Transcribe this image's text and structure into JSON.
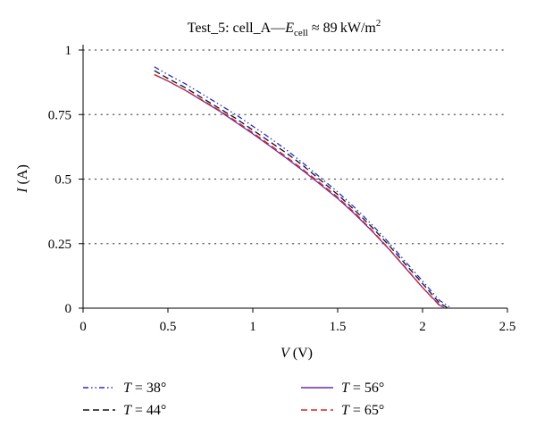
{
  "chart_data": {
    "type": "line",
    "title_parts": {
      "prefix": "Test_5: cell_A—",
      "E": "E",
      "sub": "cell",
      "suffix": " ≈ 89 kW/m",
      "sup": "2"
    },
    "xlabel": {
      "var": "V",
      "unit": " (V)"
    },
    "ylabel": {
      "var": "I",
      "unit": " (A)"
    },
    "xlim": [
      0,
      2.5
    ],
    "ylim": [
      0,
      1
    ],
    "x_ticks": [
      0,
      0.5,
      1,
      1.5,
      2,
      2.5
    ],
    "x_tick_labels": [
      "0",
      "0.5",
      "1",
      "1.5",
      "2",
      "2.5"
    ],
    "y_ticks": [
      0,
      0.25,
      0.5,
      0.75,
      1
    ],
    "y_tick_labels": [
      "0",
      "0.25",
      "0.5",
      "0.75",
      "1"
    ],
    "grid": "horizontal-dotted",
    "legend_position": "bottom",
    "series": [
      {
        "name_var": "T",
        "name_rest": " = 38°",
        "color": "#2b2bd0",
        "dash": "dash-dot-dot",
        "x": [
          0.42,
          0.5,
          0.6,
          0.7,
          0.8,
          0.9,
          1.0,
          1.1,
          1.2,
          1.3,
          1.4,
          1.5,
          1.6,
          1.7,
          1.8,
          1.9,
          2.0,
          2.1,
          2.17
        ],
        "y": [
          0.935,
          0.905,
          0.87,
          0.83,
          0.79,
          0.75,
          0.705,
          0.66,
          0.612,
          0.56,
          0.505,
          0.45,
          0.39,
          0.325,
          0.255,
          0.18,
          0.105,
          0.03,
          0.0
        ]
      },
      {
        "name_var": "T",
        "name_rest": " = 44°",
        "color": "#111111",
        "dash": "dash",
        "x": [
          0.42,
          0.5,
          0.6,
          0.7,
          0.8,
          0.9,
          1.0,
          1.1,
          1.2,
          1.3,
          1.4,
          1.5,
          1.6,
          1.7,
          1.8,
          1.9,
          2.0,
          2.1,
          2.15
        ],
        "y": [
          0.92,
          0.89,
          0.855,
          0.815,
          0.775,
          0.735,
          0.69,
          0.645,
          0.6,
          0.55,
          0.495,
          0.44,
          0.38,
          0.315,
          0.245,
          0.17,
          0.095,
          0.02,
          0.0
        ]
      },
      {
        "name_var": "T",
        "name_rest": " = 56°",
        "color": "#6a2bb0",
        "dash": "solid",
        "x": [
          0.42,
          0.5,
          0.6,
          0.7,
          0.8,
          0.9,
          1.0,
          1.1,
          1.2,
          1.3,
          1.4,
          1.5,
          1.6,
          1.7,
          1.8,
          1.9,
          2.0,
          2.1,
          2.13
        ],
        "y": [
          0.905,
          0.88,
          0.845,
          0.805,
          0.765,
          0.72,
          0.675,
          0.628,
          0.58,
          0.53,
          0.478,
          0.425,
          0.365,
          0.3,
          0.23,
          0.155,
          0.08,
          0.012,
          0.0
        ]
      },
      {
        "name_var": "T",
        "name_rest": " = 65°",
        "color": "#e02020",
        "dash": "dash",
        "x": [
          0.42,
          0.5,
          0.6,
          0.7,
          0.8,
          0.9,
          1.0,
          1.1,
          1.2,
          1.3,
          1.4,
          1.5,
          1.6,
          1.7,
          1.8,
          1.9,
          2.0,
          2.1,
          2.12
        ],
        "y": [
          0.905,
          0.88,
          0.845,
          0.807,
          0.768,
          0.725,
          0.68,
          0.633,
          0.585,
          0.535,
          0.483,
          0.43,
          0.37,
          0.303,
          0.232,
          0.157,
          0.08,
          0.01,
          0.0
        ]
      }
    ]
  }
}
